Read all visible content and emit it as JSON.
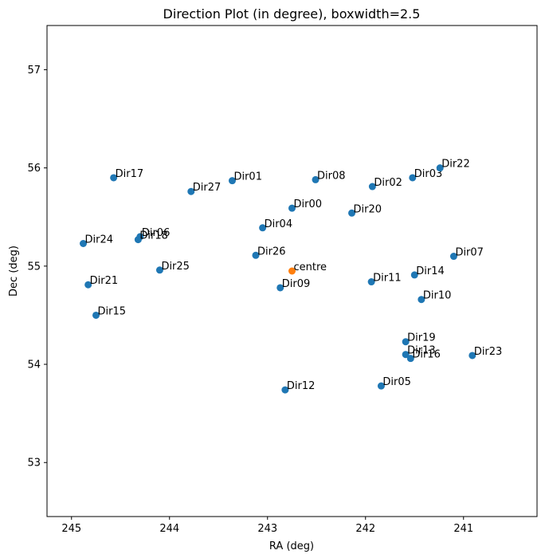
{
  "chart_data": {
    "type": "scatter",
    "title": "Direction Plot (in degree), boxwidth=2.5",
    "xlabel": "RA (deg)",
    "ylabel": "Dec (deg)",
    "xlim": [
      245.25,
      240.25
    ],
    "ylim": [
      52.45,
      57.45
    ],
    "x_inverted": true,
    "xticks": [
      245,
      244,
      243,
      242,
      241
    ],
    "yticks": [
      53,
      54,
      55,
      56,
      57
    ],
    "grid": false,
    "colors": {
      "directions": "#1f77b4",
      "centre": "#ff7f0e"
    },
    "series": [
      {
        "name": "",
        "color": "#1f77b4",
        "points": [
          {
            "label": "Dir00",
            "ra": 242.75,
            "dec": 55.59
          },
          {
            "label": "Dir01",
            "ra": 243.36,
            "dec": 55.87
          },
          {
            "label": "Dir02",
            "ra": 241.93,
            "dec": 55.81
          },
          {
            "label": "Dir03",
            "ra": 241.52,
            "dec": 55.9
          },
          {
            "label": "Dir04",
            "ra": 243.05,
            "dec": 55.39
          },
          {
            "label": "Dir05",
            "ra": 241.84,
            "dec": 53.78
          },
          {
            "label": "Dir06",
            "ra": 244.3,
            "dec": 55.3
          },
          {
            "label": "Dir07",
            "ra": 241.1,
            "dec": 55.1
          },
          {
            "label": "Dir08",
            "ra": 242.51,
            "dec": 55.88
          },
          {
            "label": "Dir09",
            "ra": 242.87,
            "dec": 54.78
          },
          {
            "label": "Dir10",
            "ra": 241.43,
            "dec": 54.66
          },
          {
            "label": "Dir11",
            "ra": 241.94,
            "dec": 54.84
          },
          {
            "label": "Dir12",
            "ra": 242.82,
            "dec": 53.74
          },
          {
            "label": "Dir13",
            "ra": 241.59,
            "dec": 54.1
          },
          {
            "label": "Dir14",
            "ra": 241.5,
            "dec": 54.91
          },
          {
            "label": "Dir15",
            "ra": 244.75,
            "dec": 54.5
          },
          {
            "label": "Dir16",
            "ra": 241.54,
            "dec": 54.06
          },
          {
            "label": "Dir17",
            "ra": 244.57,
            "dec": 55.9
          },
          {
            "label": "Dir18",
            "ra": 244.32,
            "dec": 55.27
          },
          {
            "label": "Dir19",
            "ra": 241.59,
            "dec": 54.23
          },
          {
            "label": "Dir20",
            "ra": 242.14,
            "dec": 55.54
          },
          {
            "label": "Dir21",
            "ra": 244.83,
            "dec": 54.81
          },
          {
            "label": "Dir22",
            "ra": 241.24,
            "dec": 56.0
          },
          {
            "label": "Dir23",
            "ra": 240.91,
            "dec": 54.09
          },
          {
            "label": "Dir24",
            "ra": 244.88,
            "dec": 55.23
          },
          {
            "label": "Dir25",
            "ra": 244.1,
            "dec": 54.96
          },
          {
            "label": "Dir26",
            "ra": 243.12,
            "dec": 55.11
          },
          {
            "label": "Dir27",
            "ra": 243.78,
            "dec": 55.76
          }
        ]
      },
      {
        "name": "",
        "color": "#ff7f0e",
        "points": [
          {
            "label": "centre",
            "ra": 242.75,
            "dec": 54.95
          }
        ]
      }
    ]
  }
}
